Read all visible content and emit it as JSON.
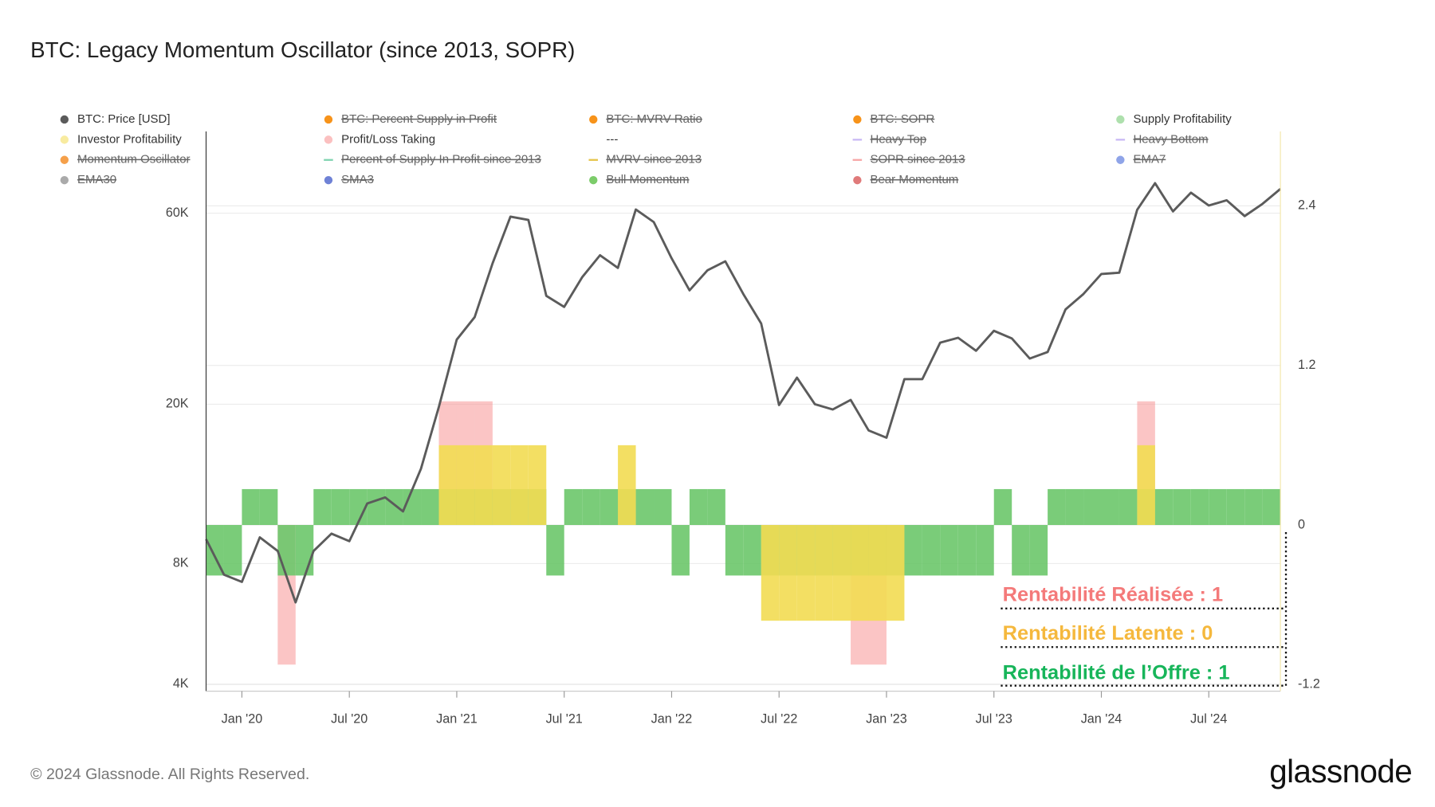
{
  "chart_data": {
    "type": "line",
    "title": "BTC: Legacy Momentum Oscillator (since 2013, SOPR)",
    "x": [
      "2019-11",
      "2019-12",
      "2020-01",
      "2020-02",
      "2020-03",
      "2020-04",
      "2020-05",
      "2020-06",
      "2020-07",
      "2020-08",
      "2020-09",
      "2020-10",
      "2020-11",
      "2020-12",
      "2021-01",
      "2021-02",
      "2021-03",
      "2021-04",
      "2021-05",
      "2021-06",
      "2021-07",
      "2021-08",
      "2021-09",
      "2021-10",
      "2021-11",
      "2021-12",
      "2022-01",
      "2022-02",
      "2022-03",
      "2022-04",
      "2022-05",
      "2022-06",
      "2022-07",
      "2022-08",
      "2022-09",
      "2022-10",
      "2022-11",
      "2022-12",
      "2023-01",
      "2023-02",
      "2023-03",
      "2023-04",
      "2023-05",
      "2023-06",
      "2023-07",
      "2023-08",
      "2023-09",
      "2023-10",
      "2023-11",
      "2023-12",
      "2024-01",
      "2024-02",
      "2024-03",
      "2024-04",
      "2024-05",
      "2024-06",
      "2024-07",
      "2024-08",
      "2024-09",
      "2024-10",
      "2024-11"
    ],
    "series": [
      {
        "name": "BTC: Price [USD]",
        "type": "line",
        "color": "#5b5b5b",
        "values": [
          9200,
          7500,
          7200,
          9300,
          8600,
          6400,
          8600,
          9500,
          9100,
          11300,
          11700,
          10800,
          13800,
          19700,
          29000,
          33000,
          45000,
          58800,
          57700,
          37300,
          35000,
          41500,
          47100,
          43800,
          61300,
          57000,
          46300,
          38500,
          43200,
          45500,
          37700,
          31800,
          19900,
          23300,
          20000,
          19400,
          20500,
          17200,
          16500,
          23100,
          23100,
          28500,
          29300,
          27200,
          30500,
          29200,
          26000,
          27000,
          34500,
          37700,
          42300,
          42600,
          61200,
          71300,
          60600,
          67500,
          62700,
          64600,
          59000,
          63300,
          69000
        ]
      },
      {
        "name": "Supply Profitability",
        "type": "bar",
        "axis": "y2",
        "color": "#6cc76a",
        "values": [
          -0.38,
          -0.38,
          0.27,
          0.27,
          -0.38,
          -0.38,
          0.27,
          0.27,
          0.27,
          0.27,
          0.27,
          0.27,
          0.27,
          0.27,
          0.27,
          0.27,
          0.27,
          0.27,
          0.27,
          -0.38,
          0.27,
          0.27,
          0.27,
          0.27,
          0.27,
          0.27,
          -0.38,
          0.27,
          0.27,
          -0.38,
          -0.38,
          -0.38,
          -0.38,
          -0.38,
          -0.38,
          -0.38,
          -0.38,
          -0.38,
          -0.38,
          -0.38,
          -0.38,
          -0.38,
          -0.38,
          -0.38,
          0.27,
          -0.38,
          -0.38,
          0.27,
          0.27,
          0.27,
          0.27,
          0.27,
          0.27,
          0.27,
          0.27,
          0.27,
          0.27,
          0.27,
          0.27,
          0.27,
          null
        ]
      },
      {
        "name": "Investor Profitability",
        "type": "bar",
        "axis": "y2",
        "color": "#f2db52",
        "values": [
          null,
          null,
          null,
          null,
          null,
          null,
          null,
          null,
          null,
          null,
          null,
          null,
          null,
          0.6,
          0.6,
          0.6,
          0.6,
          0.6,
          0.6,
          null,
          null,
          null,
          null,
          0.6,
          null,
          null,
          null,
          null,
          null,
          null,
          null,
          -0.72,
          -0.72,
          -0.72,
          -0.72,
          -0.72,
          -0.72,
          -0.72,
          -0.72,
          null,
          null,
          null,
          null,
          null,
          null,
          null,
          null,
          null,
          null,
          null,
          null,
          null,
          0.6,
          null,
          null,
          null,
          null,
          null,
          null,
          null,
          null
        ]
      },
      {
        "name": "Profit/Loss Taking",
        "type": "bar",
        "axis": "y2",
        "color": "#f78c8c",
        "values": [
          null,
          null,
          null,
          null,
          -1.05,
          null,
          null,
          null,
          null,
          null,
          null,
          null,
          null,
          0.93,
          0.93,
          0.93,
          null,
          null,
          null,
          null,
          null,
          null,
          null,
          null,
          null,
          null,
          null,
          null,
          null,
          null,
          null,
          null,
          null,
          null,
          null,
          null,
          -1.05,
          -1.05,
          null,
          null,
          null,
          null,
          null,
          null,
          null,
          null,
          null,
          null,
          null,
          null,
          null,
          null,
          0.93,
          null,
          null,
          null,
          null,
          null,
          null,
          null,
          null
        ]
      }
    ],
    "legend_entries": [
      {
        "name": "BTC: Percent Supply in Profit",
        "color": "#f7931a",
        "hidden": true
      },
      {
        "name": "BTC: MVRV Ratio",
        "color": "#f7931a",
        "hidden": true
      },
      {
        "name": "BTC: SOPR",
        "color": "#f7931a",
        "hidden": true
      },
      {
        "name": "---"
      },
      {
        "name": "Heavy Top",
        "color": "#c9b8f5",
        "hidden": true,
        "marker": "line"
      },
      {
        "name": "Heavy Bottom",
        "color": "#c9b8f5",
        "hidden": true,
        "marker": "line"
      },
      {
        "name": "Momentum Oscillator",
        "color": "#f5a04a",
        "hidden": true
      },
      {
        "name": "Percent of Supply In Profit since 2013",
        "color": "#7fd3b0",
        "hidden": true,
        "marker": "line"
      },
      {
        "name": "MVRV since 2013",
        "color": "#e5c44a",
        "hidden": true,
        "marker": "line"
      },
      {
        "name": "SOPR since 2013",
        "color": "#f7a5a5",
        "hidden": true,
        "marker": "line"
      },
      {
        "name": "EMA7",
        "color": "#8fa4e8",
        "hidden": true
      },
      {
        "name": "EMA30",
        "color": "#aaaaaa",
        "hidden": true
      },
      {
        "name": "SMA3",
        "color": "#6f82d6",
        "hidden": true
      },
      {
        "name": "Bull Momentum",
        "color": "#7ccc6a",
        "hidden": true
      },
      {
        "name": "Bear Momentum",
        "color": "#e07a7a",
        "hidden": true
      }
    ],
    "xlim": [
      "2019-11",
      "2024-11"
    ],
    "xticks": [
      {
        "value": "2020-01",
        "label": "Jan '20"
      },
      {
        "value": "2020-07",
        "label": "Jul '20"
      },
      {
        "value": "2021-01",
        "label": "Jan '21"
      },
      {
        "value": "2021-07",
        "label": "Jul '21"
      },
      {
        "value": "2022-01",
        "label": "Jan '22"
      },
      {
        "value": "2022-07",
        "label": "Jul '22"
      },
      {
        "value": "2023-01",
        "label": "Jan '23"
      },
      {
        "value": "2023-07",
        "label": "Jul '23"
      },
      {
        "value": "2024-01",
        "label": "Jan '24"
      },
      {
        "value": "2024-07",
        "label": "Jul '24"
      }
    ],
    "log_scale": true,
    "ylim": [
      3840,
      96000
    ],
    "yticks": [
      {
        "value": 4000,
        "label": "4K"
      },
      {
        "value": 8000,
        "label": "8K"
      },
      {
        "value": 20000,
        "label": "20K"
      },
      {
        "value": 60000,
        "label": "60K"
      }
    ],
    "y2lim": [
      -1.25,
      2.96
    ],
    "y2ticks": [
      -1.2,
      0,
      1.2,
      2.4
    ],
    "grid": true,
    "annotations": [
      {
        "text": "Rentabilité Réalisée : 1",
        "color": "#f47a7a"
      },
      {
        "text": "Rentabilité Latente : 0",
        "color": "#f5b83d"
      },
      {
        "text": "Rentabilité de l’Offre : 1",
        "color": "#17b55a"
      }
    ]
  },
  "footer": "© 2024 Glassnode. All Rights Reserved.",
  "logo": "glassnode"
}
